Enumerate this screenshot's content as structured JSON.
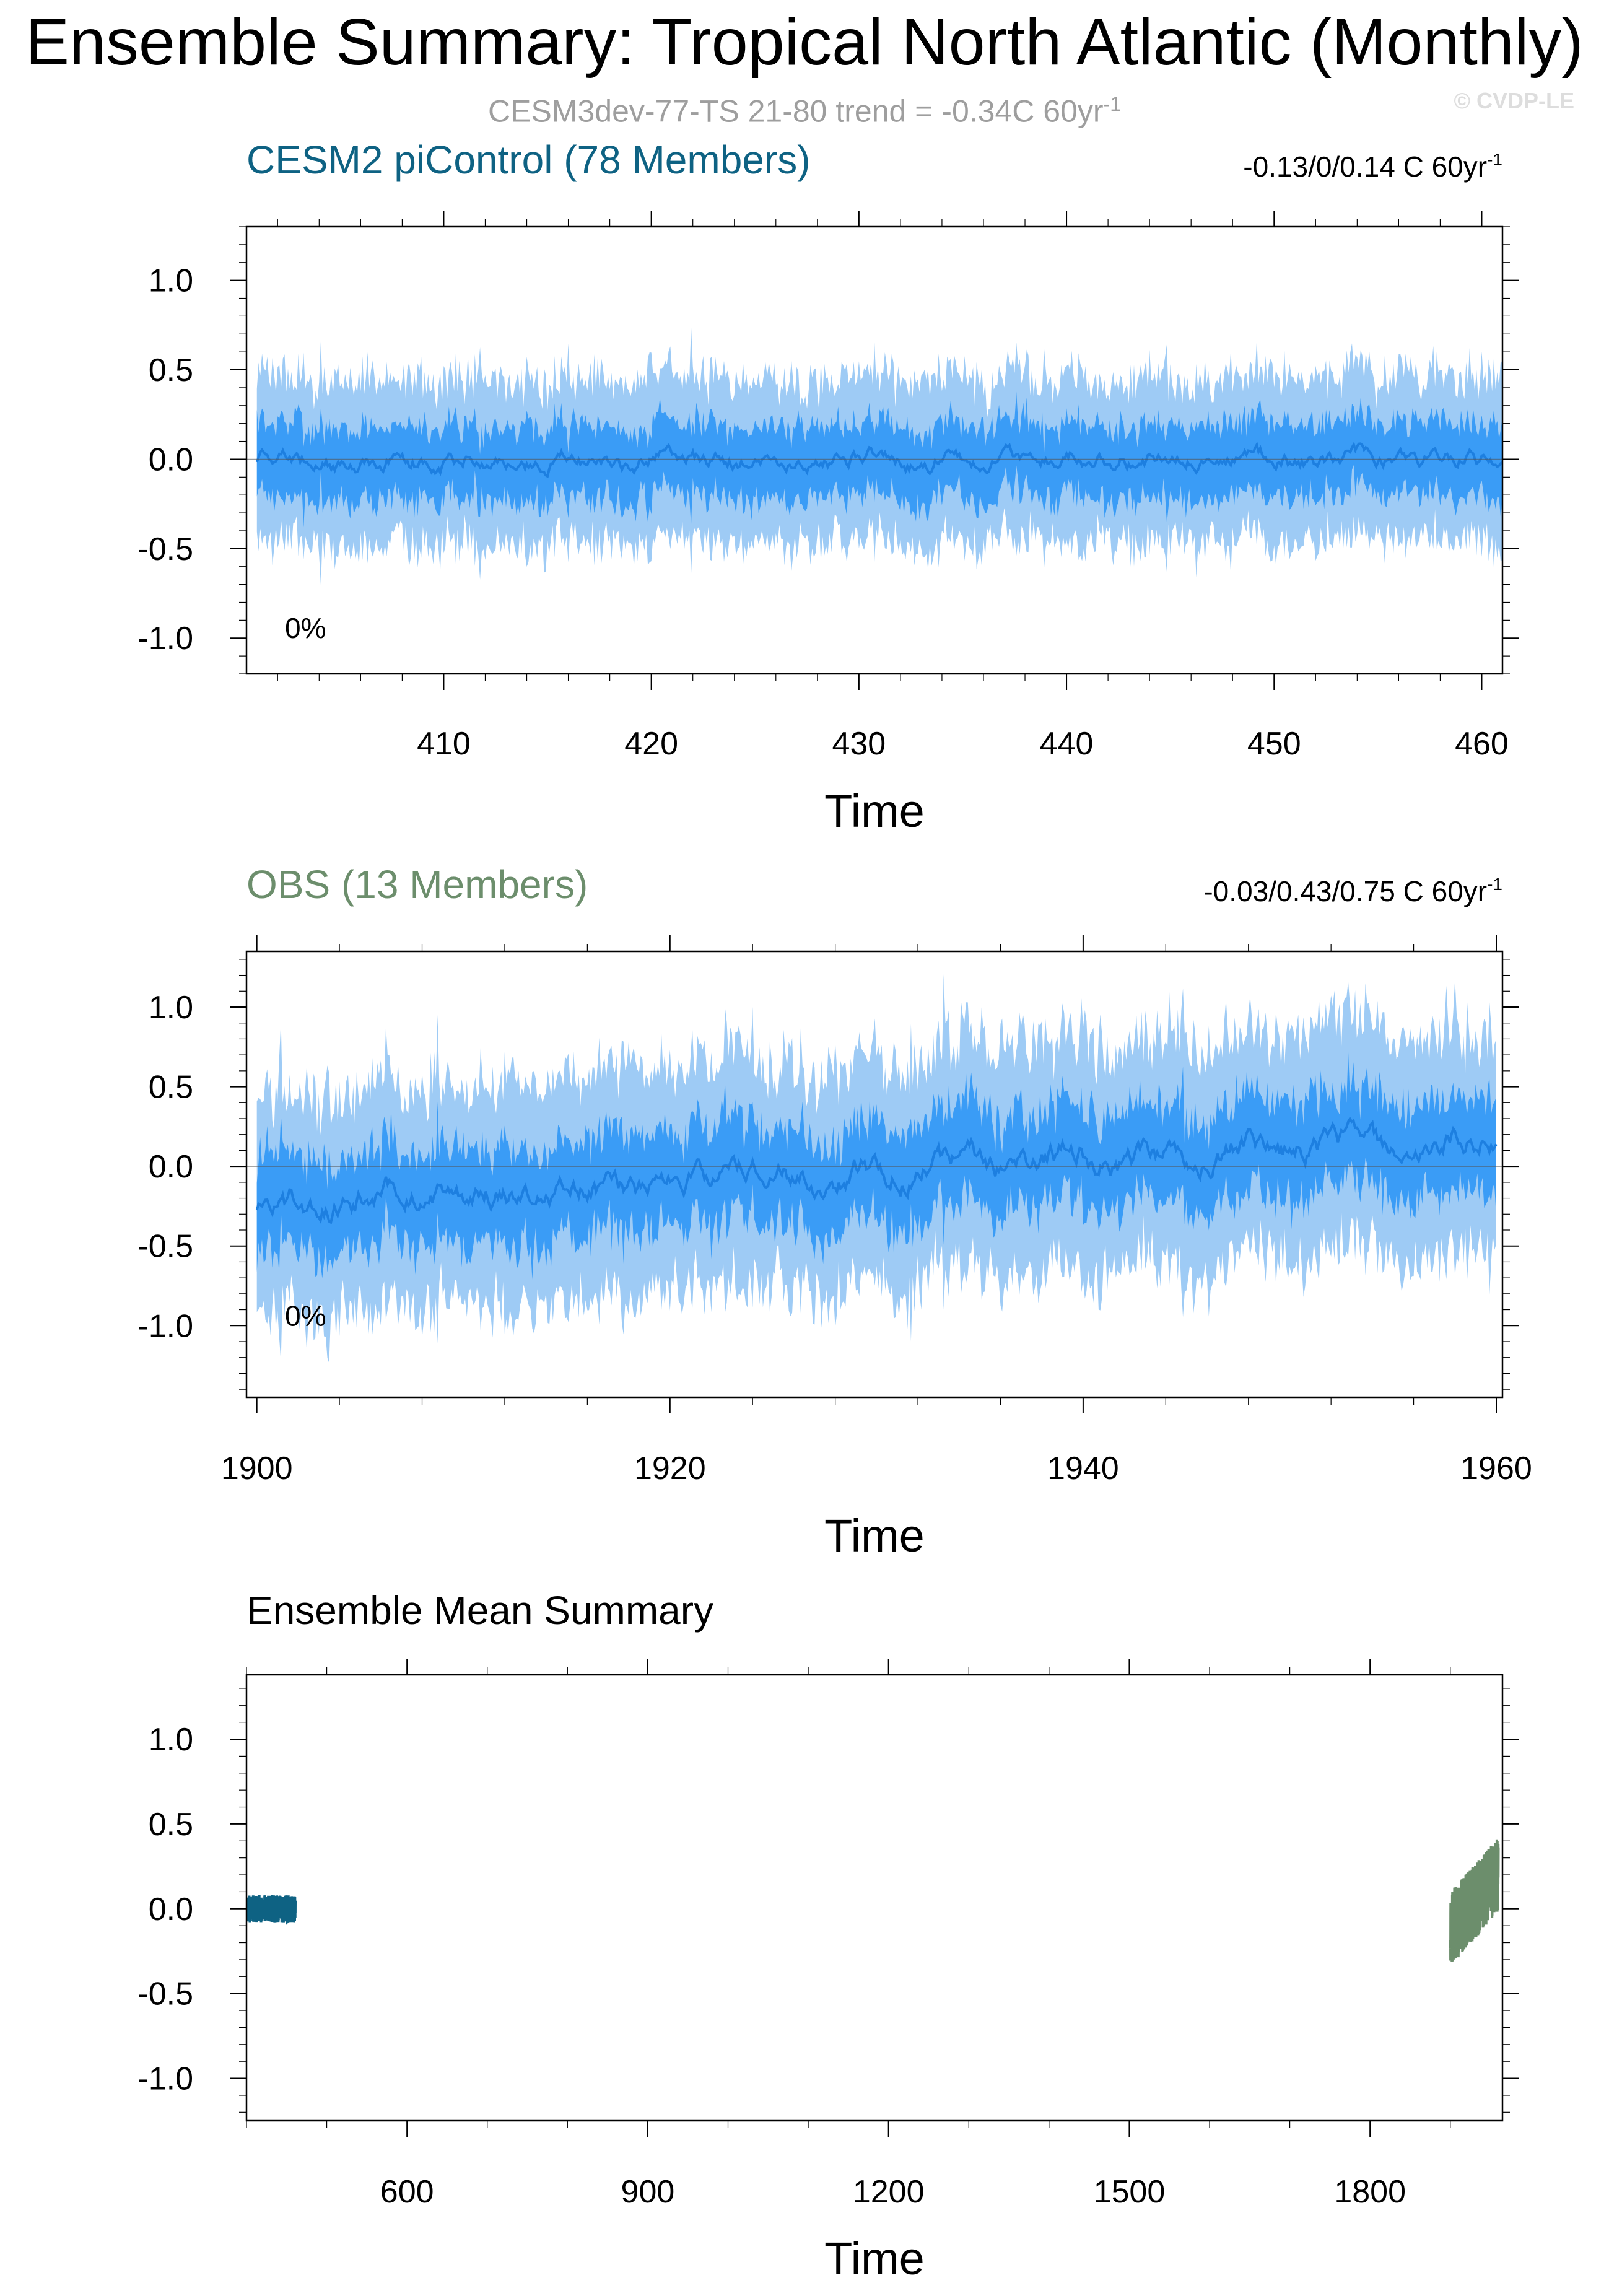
{
  "header": {
    "title": "Ensemble Summary: Tropical North Atlantic (Monthly)",
    "subtitle_text": "CESM3dev-77-TS 21-80 trend = -0.34C 60yr",
    "subtitle_sup": "-1",
    "copyright": "© CVDP-LE"
  },
  "colors": {
    "light_band": "#9ecbf5",
    "dark_band": "#3a9cf6",
    "mean_line": "#1d7fe0",
    "cesm_title": "#0e6283",
    "obs_title": "#6c8e6c",
    "grid_text": "#000000"
  },
  "chart_data": [
    {
      "type": "area",
      "title": "CESM2 piControl (78 Members)",
      "trend_text": "-0.13/0/0.14 C 60yr",
      "trend_sup": "-1",
      "percent_label": "0%",
      "xlabel": "Time",
      "ylabel": "",
      "xlim": [
        400.5,
        461
      ],
      "ylim": [
        -1.2,
        1.3
      ],
      "xticks": [
        410,
        420,
        430,
        440,
        450,
        460
      ],
      "yticks": [
        1.0,
        0.5,
        0.0,
        -0.5,
        -1.0
      ],
      "ytick_labels": [
        "1.0",
        "0.5",
        "0.0",
        "-0.5",
        "-1.0"
      ],
      "series": {
        "x_start": 401,
        "x_end": 461,
        "points_per_unit": 12,
        "mean_amplitude": 0.06,
        "mean_trend": [
          0.0,
          0.0
        ],
        "inner_halfwidth": 0.2,
        "outer_halfwidth": 0.4,
        "noise": 0.12,
        "seed": 7
      }
    },
    {
      "type": "area",
      "title": "OBS (13 Members)",
      "trend_text": "-0.03/0.43/0.75 C 60yr",
      "trend_sup": "-1",
      "percent_label": "0%",
      "xlabel": "Time",
      "ylabel": "",
      "xlim": [
        1899.5,
        1960.3
      ],
      "ylim": [
        -1.45,
        1.35
      ],
      "xticks": [
        1900,
        1920,
        1940,
        1960
      ],
      "yticks": [
        1.0,
        0.5,
        0.0,
        -0.5,
        -1.0
      ],
      "ytick_labels": [
        "1.0",
        "0.5",
        "0.0",
        "-0.5",
        "-1.0"
      ],
      "series": {
        "x_start": 1900,
        "x_end": 1960,
        "points_per_unit": 12,
        "mean_amplitude": 0.1,
        "mean_trend": [
          -0.25,
          0.2
        ],
        "inner_halfwidth": 0.3,
        "outer_halfwidth": 0.6,
        "noise": 0.22,
        "seed": 19
      }
    },
    {
      "type": "line",
      "title": "Ensemble Mean Summary",
      "xlabel": "Time",
      "ylabel": "",
      "xlim": [
        400,
        1965
      ],
      "ylim": [
        -1.25,
        1.38
      ],
      "xticks": [
        600,
        900,
        1200,
        1500,
        1800
      ],
      "yticks": [
        1.0,
        0.5,
        0.0,
        -0.5,
        -1.0
      ],
      "ytick_labels": [
        "1.0",
        "0.5",
        "0.0",
        "-0.5",
        "-1.0"
      ],
      "series": [
        {
          "name": "",
          "color": "#0e6283",
          "x_start": 401,
          "x_end": 461,
          "center": [
            0.0,
            0.0
          ],
          "amp": 0.08,
          "seed": 3
        },
        {
          "name": "",
          "color": "#6c8e6c",
          "x_start": 1900,
          "x_end": 1960,
          "center": [
            -0.12,
            0.2
          ],
          "amp": 0.22,
          "seed": 11
        }
      ]
    }
  ]
}
